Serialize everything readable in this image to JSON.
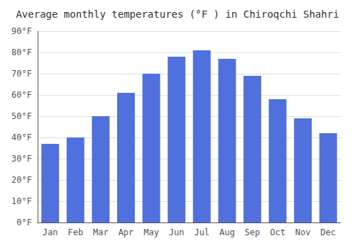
{
  "chart_data": {
    "type": "bar",
    "title": "Average monthly temperatures (°F ) in Chiroqchi Shahri",
    "categories": [
      "Jan",
      "Feb",
      "Mar",
      "Apr",
      "May",
      "Jun",
      "Jul",
      "Aug",
      "Sep",
      "Oct",
      "Nov",
      "Dec"
    ],
    "values": [
      37,
      40,
      50,
      61,
      70,
      78,
      81,
      77,
      69,
      58,
      49,
      42
    ],
    "ylim": [
      0,
      90
    ],
    "yticks": [
      {
        "value": 0,
        "label": "0°F"
      },
      {
        "value": 10,
        "label": "10°F"
      },
      {
        "value": 20,
        "label": "20°F"
      },
      {
        "value": 30,
        "label": "30°F"
      },
      {
        "value": 40,
        "label": "40°F"
      },
      {
        "value": 50,
        "label": "50°F"
      },
      {
        "value": 60,
        "label": "60°F"
      },
      {
        "value": 70,
        "label": "70°F"
      },
      {
        "value": 80,
        "label": "80°F"
      },
      {
        "value": 90,
        "label": "90°F"
      }
    ],
    "grid": true
  }
}
